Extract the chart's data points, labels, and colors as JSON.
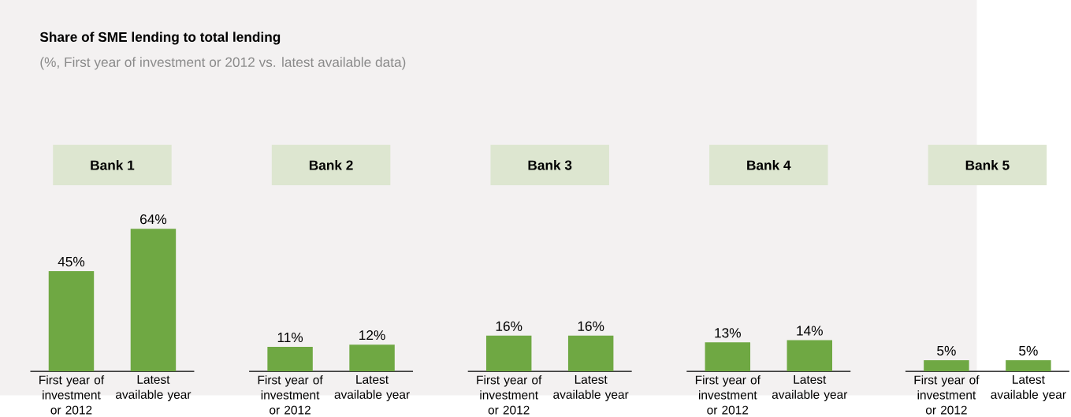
{
  "chart_data": [
    {
      "type": "other",
      "title": "Share of SME lending to total lending",
      "subtitle": "(%, First year of investment or 2012 vs. latest available data)"
    },
    {
      "type": "bar",
      "title": "Bank 1",
      "categories": [
        "First year of investment or 2012",
        "Latest available year"
      ],
      "values": [
        45,
        64
      ],
      "value_labels": [
        "45%",
        "64%"
      ],
      "color": "#6fa843"
    },
    {
      "type": "bar",
      "title": "Bank 2",
      "categories": [
        "First year of investment or 2012",
        "Latest available year"
      ],
      "values": [
        11,
        12
      ],
      "value_labels": [
        "11%",
        "12%"
      ],
      "color": "#6fa843"
    },
    {
      "type": "bar",
      "title": "Bank 3",
      "categories": [
        "First year of investment or 2012",
        "Latest available year"
      ],
      "values": [
        16,
        16
      ],
      "value_labels": [
        "16%",
        "16%"
      ],
      "color": "#6fa843"
    },
    {
      "type": "bar",
      "title": "Bank 4",
      "categories": [
        "First year of investment or 2012",
        "Latest available year"
      ],
      "values": [
        13,
        14
      ],
      "value_labels": [
        "13%",
        "14%"
      ],
      "color": "#6fa843"
    },
    {
      "type": "bar",
      "title": "Bank 5",
      "categories": [
        "First year of investment or 2012",
        "Latest available year"
      ],
      "values": [
        5,
        5
      ],
      "value_labels": [
        "5%",
        "5%"
      ],
      "color": "#6fa843"
    }
  ]
}
